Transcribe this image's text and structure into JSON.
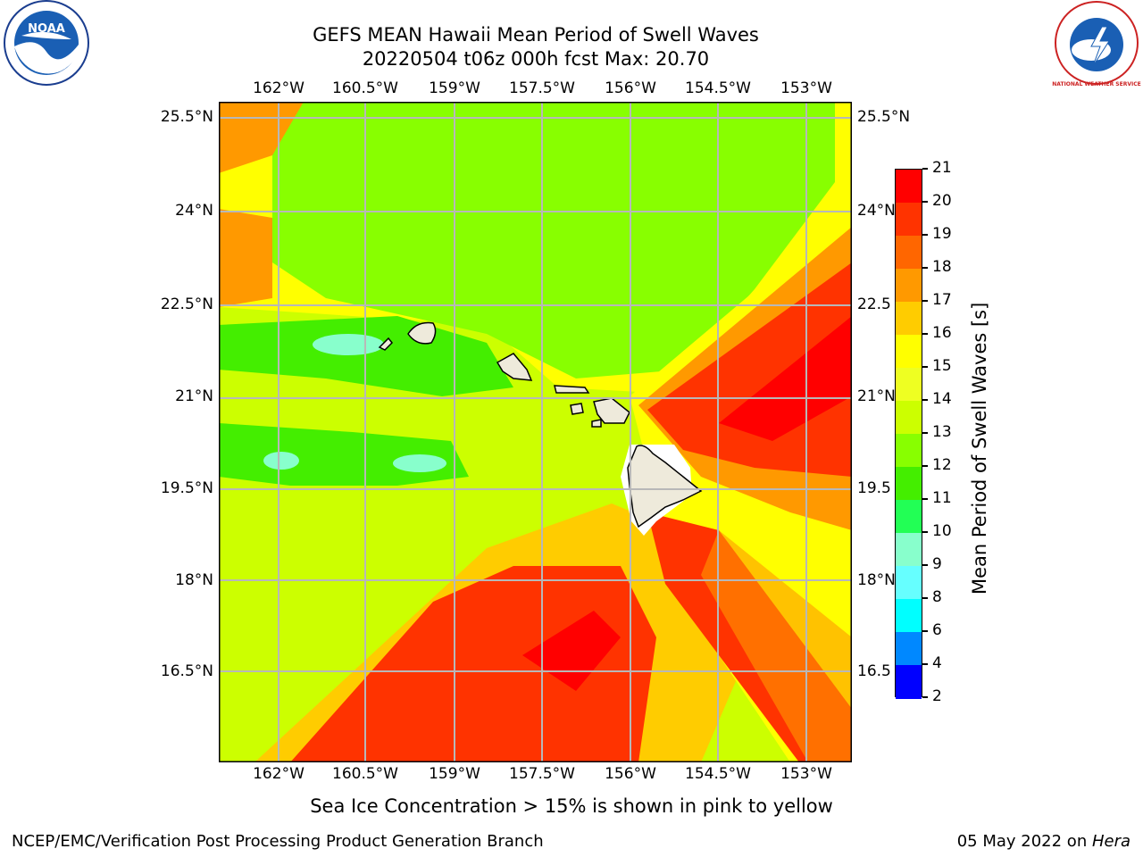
{
  "title_line1": "GEFS MEAN Hawaii Mean Period of Swell Waves",
  "title_line2": "20220504 t06z 000h fcst   Max: 20.70",
  "lon_labels": [
    "162°W",
    "160.5°W",
    "159°W",
    "157.5°W",
    "156°W",
    "154.5°W",
    "153°W"
  ],
  "lat_labels": [
    "25.5°N",
    "24°N",
    "22.5°N",
    "21°N",
    "19.5°N",
    "18°N",
    "16.5°N"
  ],
  "right_lat_labels": [
    "25.5°N",
    "24°N",
    "22.5",
    "21°N",
    "19.5",
    "18°N",
    "16.5"
  ],
  "colorbar": {
    "title": "Mean Period of Swell Waves [s]",
    "ticks": [
      "21",
      "20",
      "19",
      "18",
      "17",
      "16",
      "15",
      "14",
      "13",
      "12",
      "11",
      "10",
      "9",
      "8",
      "6",
      "4",
      "2"
    ],
    "colors": [
      "#ff0000",
      "#ff3300",
      "#ff6600",
      "#ff9900",
      "#ffcc00",
      "#ffff00",
      "#eeff22",
      "#ccff00",
      "#88ff00",
      "#44ee00",
      "#22ff55",
      "#88ffcc",
      "#66ffff",
      "#00ffff",
      "#0088ff",
      "#0000ff"
    ]
  },
  "note": "Sea Ice Concentration > 15% is shown in pink to yellow",
  "footer_left": "NCEP/EMC/Verification Post Processing Product Generation Branch",
  "footer_right_date": "05 May 2022 on ",
  "footer_right_host": "Hera",
  "logos": {
    "left": "NOAA",
    "right": "NATIONAL WEATHER SERVICE"
  }
}
